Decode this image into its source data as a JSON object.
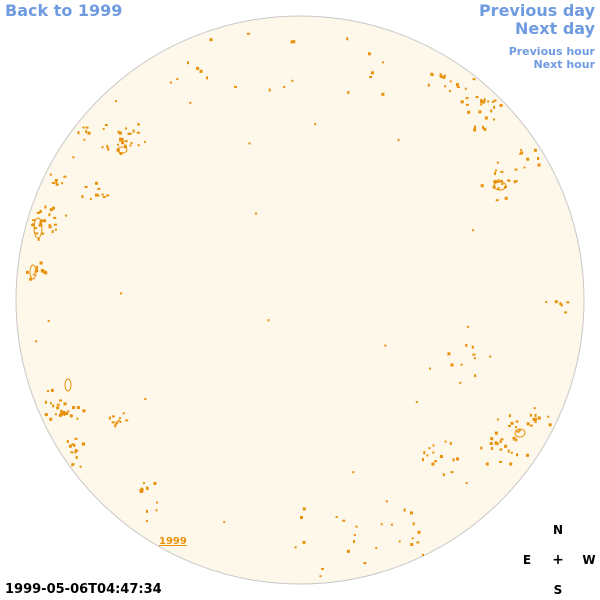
{
  "navigation": {
    "back_label": "Back to 1999",
    "previous_day_label": "Previous day",
    "next_day_label": "Next day",
    "previous_hour_label": "Previous hour",
    "next_hour_label": "Next hour"
  },
  "timestamp": "1999-05-06T04:47:34",
  "year_label": "1999",
  "compass": {
    "north": "N",
    "east": "E",
    "center": "+",
    "west": "W",
    "south": "S"
  },
  "colors": {
    "link": "#6f9be0",
    "disk_fill": "#fdf8ea",
    "disk_outline": "#c8c8c8",
    "feature": "#e8910a"
  }
}
